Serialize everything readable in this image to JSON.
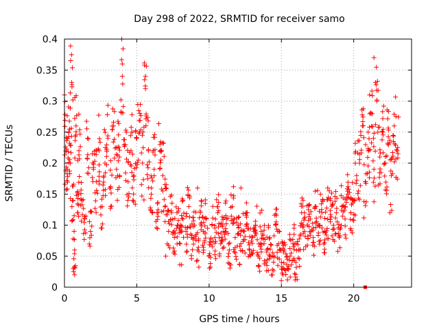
{
  "chart_data": {
    "type": "scatter",
    "title": "Day 298 of 2022, SRMTID for receiver samo",
    "xlabel": "GPS time / hours",
    "ylabel": "SRMTID / TECUs",
    "xlim": [
      0,
      24
    ],
    "ylim": [
      0,
      0.4
    ],
    "x_ticks": [
      0,
      5,
      10,
      15,
      20
    ],
    "x_tick_labels": [
      "0",
      "5",
      "10",
      "15",
      "20"
    ],
    "y_ticks": [
      0,
      0.05,
      0.1,
      0.15,
      0.2,
      0.25,
      0.3,
      0.35,
      0.4
    ],
    "y_tick_labels": [
      "0",
      "0.05",
      "0.1",
      "0.15",
      "0.2",
      "0.25",
      "0.3",
      "0.35",
      "0.4"
    ],
    "grid": true,
    "marker": "+",
    "color": "#ff0000",
    "series": [
      {
        "name": "SRMTID",
        "x": [
          0.0,
          0.1,
          0.2,
          0.3,
          0.4,
          0.5,
          0.6,
          0.7,
          0.8,
          0.9,
          1.0,
          1.2,
          1.4,
          1.6,
          1.8,
          2.0,
          2.2,
          2.4,
          2.6,
          2.8,
          3.0,
          3.2,
          3.4,
          3.6,
          3.8,
          4.0,
          4.2,
          4.4,
          4.6,
          4.8,
          5.0,
          5.2,
          5.4,
          5.6,
          5.8,
          6.0,
          6.2,
          6.4,
          6.6,
          6.8,
          7.0,
          7.2,
          7.4,
          7.6,
          7.8,
          8.0,
          8.2,
          8.4,
          8.6,
          8.8,
          9.0,
          9.2,
          9.4,
          9.6,
          9.8,
          10.0,
          10.2,
          10.4,
          10.6,
          10.8,
          11.0,
          11.2,
          11.4,
          11.6,
          11.8,
          12.0,
          12.2,
          12.4,
          12.6,
          12.8,
          13.0,
          13.2,
          13.4,
          13.6,
          13.8,
          14.0,
          14.2,
          14.4,
          14.6,
          14.8,
          15.0,
          15.2,
          15.4,
          15.6,
          15.8,
          16.0,
          16.2,
          16.4,
          16.6,
          16.8,
          17.0,
          17.2,
          17.4,
          17.6,
          17.8,
          18.0,
          18.2,
          18.4,
          18.6,
          18.8,
          19.0,
          19.2,
          19.4,
          19.6,
          19.8,
          20.0,
          20.2,
          20.4,
          20.6,
          20.8,
          21.0,
          21.2,
          21.4,
          21.6,
          21.8,
          22.0,
          22.2,
          22.4,
          22.6,
          22.8,
          23.0
        ],
        "y": [
          0.31,
          0.22,
          0.19,
          0.25,
          0.2,
          0.33,
          0.14,
          0.06,
          0.26,
          0.12,
          0.22,
          0.14,
          0.11,
          0.24,
          0.09,
          0.19,
          0.17,
          0.22,
          0.13,
          0.2,
          0.24,
          0.16,
          0.26,
          0.19,
          0.21,
          0.34,
          0.23,
          0.17,
          0.22,
          0.18,
          0.24,
          0.25,
          0.2,
          0.32,
          0.22,
          0.15,
          0.19,
          0.12,
          0.23,
          0.18,
          0.16,
          0.09,
          0.12,
          0.08,
          0.1,
          0.07,
          0.11,
          0.09,
          0.13,
          0.08,
          0.1,
          0.06,
          0.12,
          0.09,
          0.11,
          0.05,
          0.1,
          0.08,
          0.12,
          0.07,
          0.09,
          0.11,
          0.06,
          0.13,
          0.08,
          0.1,
          0.07,
          0.09,
          0.12,
          0.06,
          0.08,
          0.1,
          0.05,
          0.09,
          0.07,
          0.06,
          0.08,
          0.05,
          0.1,
          0.07,
          0.04,
          0.06,
          0.03,
          0.05,
          0.07,
          0.04,
          0.06,
          0.12,
          0.09,
          0.1,
          0.11,
          0.08,
          0.13,
          0.1,
          0.12,
          0.09,
          0.11,
          0.14,
          0.1,
          0.12,
          0.08,
          0.13,
          0.11,
          0.15,
          0.12,
          0.14,
          0.18,
          0.2,
          0.26,
          0.17,
          0.22,
          0.28,
          0.19,
          0.3,
          0.21,
          0.25,
          0.2,
          0.23,
          0.18,
          0.26,
          0.22
        ],
        "extra_points": [
          [
            0.6,
            0.03
          ],
          [
            0.7,
            0.02
          ],
          [
            4.0,
            0.36
          ],
          [
            5.6,
            0.34
          ],
          [
            21.4,
            0.37
          ],
          [
            22.5,
            0.12
          ],
          [
            20.8,
            0.0
          ],
          [
            7.0,
            0.05
          ],
          [
            9.2,
            0.16
          ],
          [
            12.2,
            0.16
          ],
          [
            14.2,
            0.05
          ],
          [
            15.1,
            0.02
          ],
          [
            15.5,
            0.03
          ],
          [
            16.5,
            0.14
          ],
          [
            17.7,
            0.15
          ],
          [
            18.2,
            0.16
          ],
          [
            19.8,
            0.12
          ],
          [
            21.0,
            0.25
          ],
          [
            21.1,
            0.31
          ],
          [
            21.5,
            0.33
          ]
        ]
      }
    ]
  }
}
